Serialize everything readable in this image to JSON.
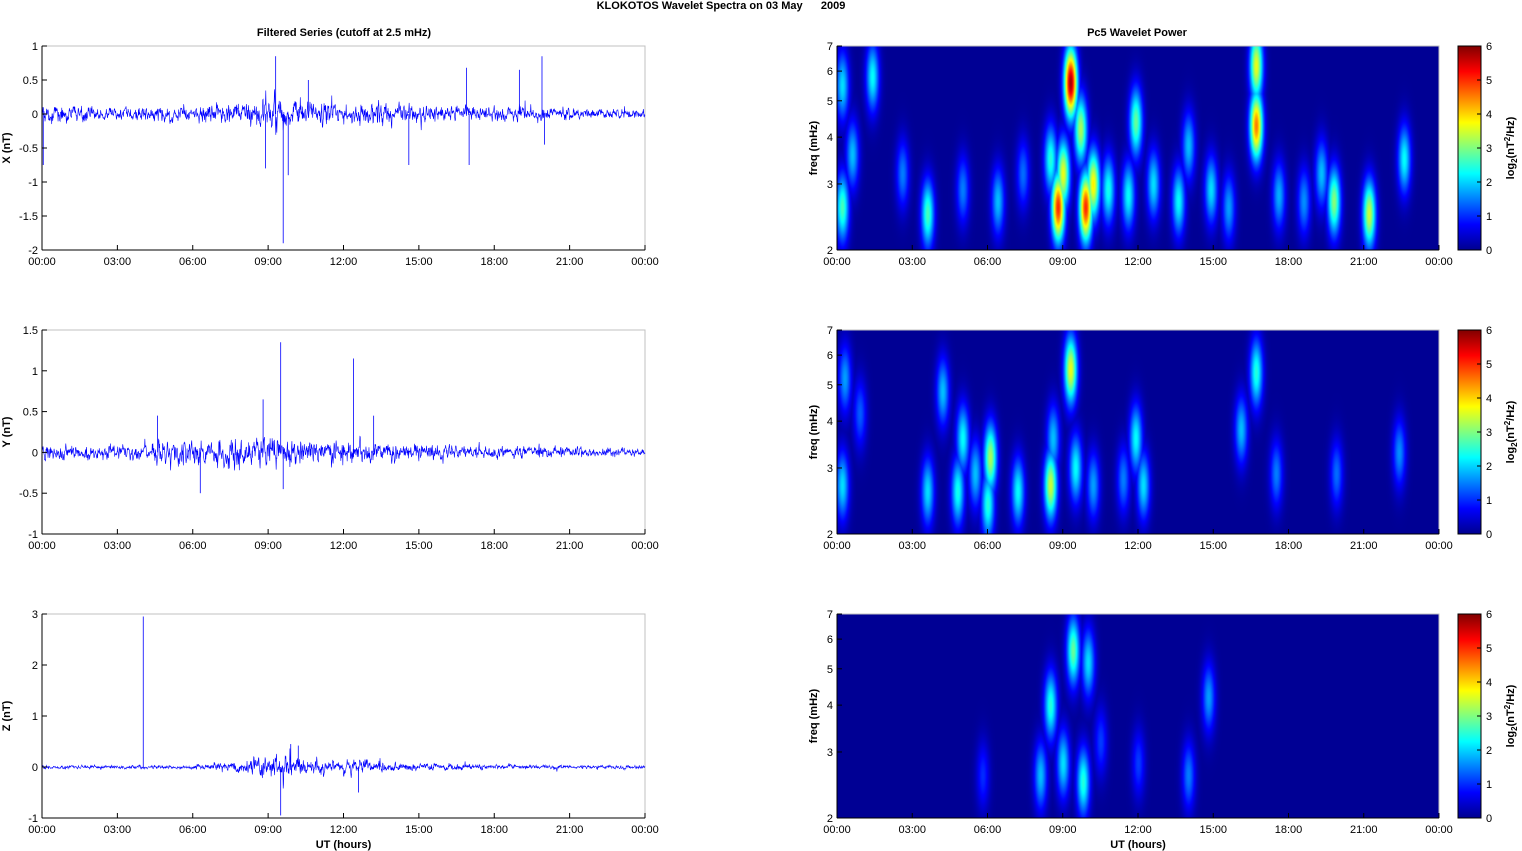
{
  "figure": {
    "title": "KLOKOTOS Wavelet Spectra on 03 May      2009",
    "left_title": "Filtered Series (cutoff at 2.5 mHz)",
    "right_title": "Pc5 Wavelet Power",
    "xlabel": "UT (hours)",
    "colorbar_label": "log2(nT2/Hz)"
  },
  "colors": {
    "trace": "#0000ff",
    "axis": "#000000",
    "box": "#c0c0c0",
    "spectrum_background": "#00008f",
    "colormap": "jet"
  },
  "chart_data": [
    {
      "type": "line",
      "panel": "X",
      "ylabel": "X (nT)",
      "ylim": [
        -2,
        1
      ],
      "yticks": [
        "1",
        "0.5",
        "0",
        "-0.5",
        "-1",
        "-1.5",
        "-2"
      ],
      "xlim_hours": [
        0,
        24
      ],
      "xticks": [
        "00:00",
        "03:00",
        "06:00",
        "09:00",
        "12:00",
        "15:00",
        "18:00",
        "21:00",
        "00:00"
      ],
      "noise_profile": [
        {
          "t": 0,
          "amp": 0.18
        },
        {
          "t": 3,
          "amp": 0.14
        },
        {
          "t": 6,
          "amp": 0.18
        },
        {
          "t": 8,
          "amp": 0.24
        },
        {
          "t": 9.5,
          "amp": 0.4
        },
        {
          "t": 11,
          "amp": 0.24
        },
        {
          "t": 15,
          "amp": 0.18
        },
        {
          "t": 18,
          "amp": 0.16
        },
        {
          "t": 21,
          "amp": 0.12
        },
        {
          "t": 24,
          "amp": 0.1
        }
      ],
      "spikes": [
        {
          "t": 0.05,
          "v": -0.75
        },
        {
          "t": 8.9,
          "v": -0.8
        },
        {
          "t": 9.3,
          "v": 0.85
        },
        {
          "t": 9.6,
          "v": -1.9
        },
        {
          "t": 9.8,
          "v": -0.9
        },
        {
          "t": 10.6,
          "v": 0.5
        },
        {
          "t": 14.6,
          "v": -0.75
        },
        {
          "t": 16.9,
          "v": 0.68
        },
        {
          "t": 17.0,
          "v": -0.75
        },
        {
          "t": 19.0,
          "v": 0.65
        },
        {
          "t": 19.9,
          "v": 0.85
        },
        {
          "t": 20.0,
          "v": -0.45
        }
      ]
    },
    {
      "type": "line",
      "panel": "Y",
      "ylabel": "Y (nT)",
      "ylim": [
        -1,
        1.5
      ],
      "yticks": [
        "1.5",
        "1",
        "0.5",
        "0",
        "-0.5",
        "-1"
      ],
      "xlim_hours": [
        0,
        24
      ],
      "xticks": [
        "00:00",
        "03:00",
        "06:00",
        "09:00",
        "12:00",
        "15:00",
        "18:00",
        "21:00",
        "00:00"
      ],
      "noise_profile": [
        {
          "t": 0,
          "amp": 0.14
        },
        {
          "t": 3,
          "amp": 0.13
        },
        {
          "t": 5,
          "amp": 0.22
        },
        {
          "t": 9.5,
          "amp": 0.26
        },
        {
          "t": 13,
          "amp": 0.18
        },
        {
          "t": 17,
          "amp": 0.12
        },
        {
          "t": 21,
          "amp": 0.09
        },
        {
          "t": 24,
          "amp": 0.07
        }
      ],
      "spikes": [
        {
          "t": 4.6,
          "v": 0.45
        },
        {
          "t": 6.3,
          "v": -0.5
        },
        {
          "t": 8.8,
          "v": 0.65
        },
        {
          "t": 9.5,
          "v": 1.35
        },
        {
          "t": 9.6,
          "v": -0.45
        },
        {
          "t": 12.4,
          "v": 1.15
        },
        {
          "t": 13.2,
          "v": 0.45
        }
      ]
    },
    {
      "type": "line",
      "panel": "Z",
      "ylabel": "Z (nT)",
      "ylim": [
        -1,
        3
      ],
      "yticks": [
        "3",
        "2",
        "1",
        "0",
        "-1"
      ],
      "xlim_hours": [
        0,
        24
      ],
      "xticks": [
        "00:00",
        "03:00",
        "06:00",
        "09:00",
        "12:00",
        "15:00",
        "18:00",
        "21:00",
        "00:00"
      ],
      "noise_profile": [
        {
          "t": 0,
          "amp": 0.05
        },
        {
          "t": 6,
          "amp": 0.06
        },
        {
          "t": 8,
          "amp": 0.18
        },
        {
          "t": 9.5,
          "amp": 0.35
        },
        {
          "t": 11,
          "amp": 0.22
        },
        {
          "t": 15,
          "amp": 0.12
        },
        {
          "t": 18,
          "amp": 0.07
        },
        {
          "t": 24,
          "amp": 0.05
        }
      ],
      "spikes": [
        {
          "t": 4.03,
          "v": 2.95
        },
        {
          "t": 9.5,
          "v": -0.95
        },
        {
          "t": 9.9,
          "v": 0.45
        },
        {
          "t": 10.2,
          "v": 0.42
        },
        {
          "t": 12.6,
          "v": -0.5
        }
      ]
    },
    {
      "type": "heatmap",
      "panel": "X",
      "ylabel": "freq (mHz)",
      "ylim_mhz": [
        2,
        7
      ],
      "yticks": [
        "7",
        "6",
        "5",
        "4",
        "3",
        "2"
      ],
      "xticks": [
        "00:00",
        "03:00",
        "06:00",
        "09:00",
        "12:00",
        "15:00",
        "18:00",
        "21:00",
        "00:00"
      ],
      "colorbar_ticks": [
        "6",
        "5",
        "4",
        "3",
        "2",
        "1",
        "0"
      ],
      "clim": [
        0,
        6
      ],
      "blobs": [
        {
          "t": 0.2,
          "f": 2.6,
          "p": 2.6
        },
        {
          "t": 0.2,
          "f": 5.5,
          "p": 2.0
        },
        {
          "t": 0.6,
          "f": 3.6,
          "p": 1.8
        },
        {
          "t": 1.4,
          "f": 5.8,
          "p": 2.2
        },
        {
          "t": 2.6,
          "f": 3.2,
          "p": 1.4
        },
        {
          "t": 3.6,
          "f": 2.5,
          "p": 2.6
        },
        {
          "t": 5.0,
          "f": 2.9,
          "p": 1.4
        },
        {
          "t": 6.4,
          "f": 2.7,
          "p": 1.8
        },
        {
          "t": 7.4,
          "f": 3.2,
          "p": 1.3
        },
        {
          "t": 8.5,
          "f": 3.5,
          "p": 2.4
        },
        {
          "t": 8.8,
          "f": 2.6,
          "p": 5.0
        },
        {
          "t": 9.0,
          "f": 3.2,
          "p": 3.6
        },
        {
          "t": 9.3,
          "f": 5.6,
          "p": 5.8
        },
        {
          "t": 9.7,
          "f": 4.2,
          "p": 3.2
        },
        {
          "t": 9.9,
          "f": 2.6,
          "p": 5.0
        },
        {
          "t": 10.2,
          "f": 3.0,
          "p": 3.8
        },
        {
          "t": 10.8,
          "f": 2.9,
          "p": 2.3
        },
        {
          "t": 11.6,
          "f": 2.8,
          "p": 2.2
        },
        {
          "t": 11.9,
          "f": 4.4,
          "p": 2.8
        },
        {
          "t": 12.6,
          "f": 3.0,
          "p": 2.0
        },
        {
          "t": 13.6,
          "f": 2.7,
          "p": 2.2
        },
        {
          "t": 14.0,
          "f": 3.8,
          "p": 1.8
        },
        {
          "t": 14.9,
          "f": 2.9,
          "p": 2.0
        },
        {
          "t": 15.6,
          "f": 2.6,
          "p": 1.6
        },
        {
          "t": 16.7,
          "f": 4.3,
          "p": 4.5
        },
        {
          "t": 16.7,
          "f": 6.2,
          "p": 3.6
        },
        {
          "t": 17.6,
          "f": 2.8,
          "p": 1.7
        },
        {
          "t": 18.6,
          "f": 2.7,
          "p": 1.5
        },
        {
          "t": 19.3,
          "f": 3.2,
          "p": 1.8
        },
        {
          "t": 19.8,
          "f": 2.7,
          "p": 3.0
        },
        {
          "t": 21.2,
          "f": 2.5,
          "p": 3.4
        },
        {
          "t": 22.6,
          "f": 3.5,
          "p": 2.2
        }
      ]
    },
    {
      "type": "heatmap",
      "panel": "Y",
      "ylabel": "freq (mHz)",
      "ylim_mhz": [
        2,
        7
      ],
      "yticks": [
        "7",
        "6",
        "5",
        "4",
        "3",
        "2"
      ],
      "xticks": [
        "00:00",
        "03:00",
        "06:00",
        "09:00",
        "12:00",
        "15:00",
        "18:00",
        "21:00",
        "00:00"
      ],
      "colorbar_ticks": [
        "6",
        "5",
        "4",
        "3",
        "2",
        "1",
        "0"
      ],
      "clim": [
        0,
        6
      ],
      "blobs": [
        {
          "t": 0.2,
          "f": 2.7,
          "p": 2.0
        },
        {
          "t": 0.3,
          "f": 5.2,
          "p": 1.6
        },
        {
          "t": 0.9,
          "f": 4.2,
          "p": 1.2
        },
        {
          "t": 3.6,
          "f": 2.6,
          "p": 2.0
        },
        {
          "t": 4.2,
          "f": 4.8,
          "p": 1.8
        },
        {
          "t": 4.8,
          "f": 2.6,
          "p": 2.3
        },
        {
          "t": 5.0,
          "f": 3.6,
          "p": 2.2
        },
        {
          "t": 5.5,
          "f": 2.9,
          "p": 1.8
        },
        {
          "t": 6.1,
          "f": 3.2,
          "p": 3.2
        },
        {
          "t": 6.0,
          "f": 2.4,
          "p": 2.4
        },
        {
          "t": 7.2,
          "f": 2.6,
          "p": 2.2
        },
        {
          "t": 8.5,
          "f": 2.7,
          "p": 3.4
        },
        {
          "t": 8.6,
          "f": 3.6,
          "p": 1.8
        },
        {
          "t": 9.3,
          "f": 5.5,
          "p": 3.6
        },
        {
          "t": 9.5,
          "f": 3.0,
          "p": 2.2
        },
        {
          "t": 10.2,
          "f": 2.7,
          "p": 1.6
        },
        {
          "t": 11.4,
          "f": 2.8,
          "p": 1.4
        },
        {
          "t": 11.9,
          "f": 3.6,
          "p": 2.2
        },
        {
          "t": 12.2,
          "f": 2.7,
          "p": 2.0
        },
        {
          "t": 16.1,
          "f": 3.8,
          "p": 1.8
        },
        {
          "t": 16.7,
          "f": 5.4,
          "p": 2.4
        },
        {
          "t": 17.5,
          "f": 2.9,
          "p": 1.4
        },
        {
          "t": 19.9,
          "f": 2.9,
          "p": 1.3
        },
        {
          "t": 22.4,
          "f": 3.3,
          "p": 1.5
        }
      ]
    },
    {
      "type": "heatmap",
      "panel": "Z",
      "ylabel": "freq (mHz)",
      "ylim_mhz": [
        2,
        7
      ],
      "yticks": [
        "7",
        "6",
        "5",
        "4",
        "3",
        "2"
      ],
      "xticks": [
        "00:00",
        "03:00",
        "06:00",
        "09:00",
        "12:00",
        "15:00",
        "18:00",
        "21:00",
        "00:00"
      ],
      "colorbar_ticks": [
        "6",
        "5",
        "4",
        "3",
        "2",
        "1",
        "0"
      ],
      "clim": [
        0,
        6
      ],
      "blobs": [
        {
          "t": 5.8,
          "f": 2.6,
          "p": 0.9
        },
        {
          "t": 8.1,
          "f": 2.6,
          "p": 1.8
        },
        {
          "t": 8.5,
          "f": 4.0,
          "p": 2.4
        },
        {
          "t": 9.0,
          "f": 2.8,
          "p": 2.0
        },
        {
          "t": 9.4,
          "f": 5.6,
          "p": 2.8
        },
        {
          "t": 9.8,
          "f": 2.5,
          "p": 2.4
        },
        {
          "t": 10.0,
          "f": 5.2,
          "p": 2.0
        },
        {
          "t": 10.5,
          "f": 3.2,
          "p": 1.0
        },
        {
          "t": 12.0,
          "f": 2.8,
          "p": 1.0
        },
        {
          "t": 14.0,
          "f": 2.6,
          "p": 1.4
        },
        {
          "t": 14.8,
          "f": 4.2,
          "p": 1.6
        }
      ]
    }
  ]
}
